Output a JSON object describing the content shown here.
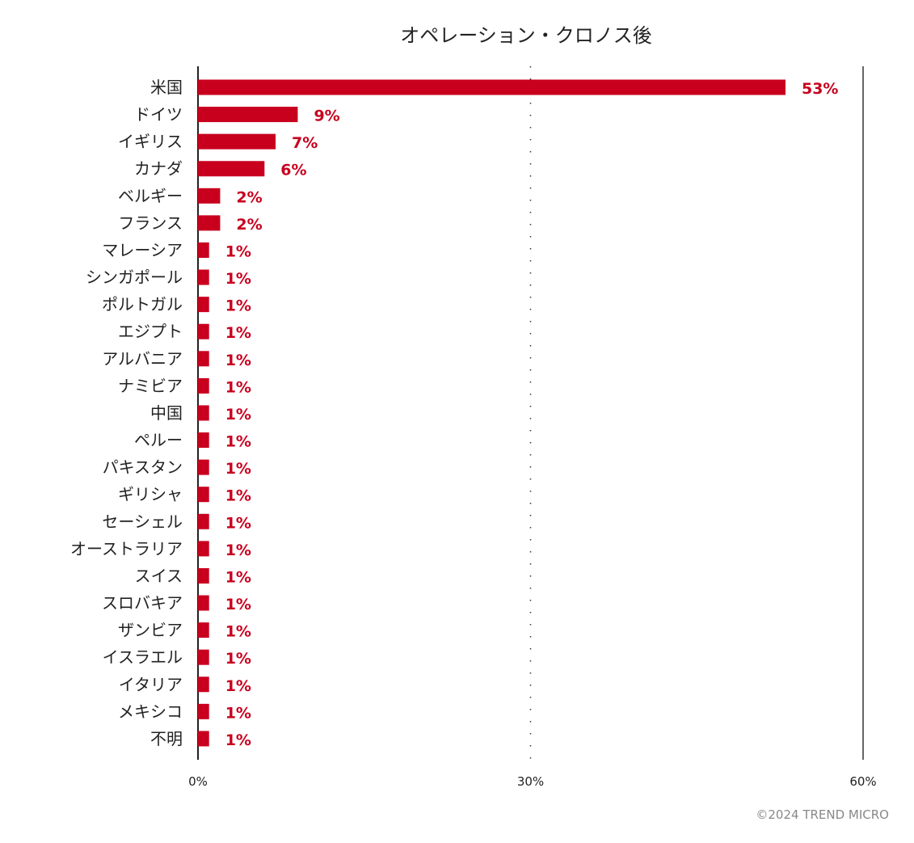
{
  "chart_data": {
    "type": "bar",
    "orientation": "horizontal",
    "title": "オペレーション・クロノス後",
    "categories": [
      "米国",
      "ドイツ",
      "イギリス",
      "カナダ",
      "ベルギー",
      "フランス",
      "マレーシア",
      "シンガポール",
      "ポルトガル",
      "エジプト",
      "アルバニア",
      "ナミビア",
      "中国",
      "ペルー",
      "パキスタン",
      "ギリシャ",
      "セーシェル",
      "オーストラリア",
      "スイス",
      "スロバキア",
      "ザンビア",
      "イスラエル",
      "イタリア",
      "メキシコ",
      "不明"
    ],
    "values": [
      53,
      9,
      7,
      6,
      2,
      2,
      1,
      1,
      1,
      1,
      1,
      1,
      1,
      1,
      1,
      1,
      1,
      1,
      1,
      1,
      1,
      1,
      1,
      1,
      1
    ],
    "value_labels": [
      "53%",
      "9%",
      "7%",
      "6%",
      "2%",
      "2%",
      "1%",
      "1%",
      "1%",
      "1%",
      "1%",
      "1%",
      "1%",
      "1%",
      "1%",
      "1%",
      "1%",
      "1%",
      "1%",
      "1%",
      "1%",
      "1%",
      "1%",
      "1%",
      "1%"
    ],
    "xlim": [
      0,
      60
    ],
    "xticks": [
      0,
      30,
      60
    ],
    "xtick_labels": [
      "0%",
      "30%",
      "60%"
    ],
    "xlabel": "",
    "ylabel": "",
    "bar_color": "#c8001e",
    "grid": "dotted line at 30%"
  },
  "footer": {
    "copyright": "©2024 TREND MICRO"
  }
}
